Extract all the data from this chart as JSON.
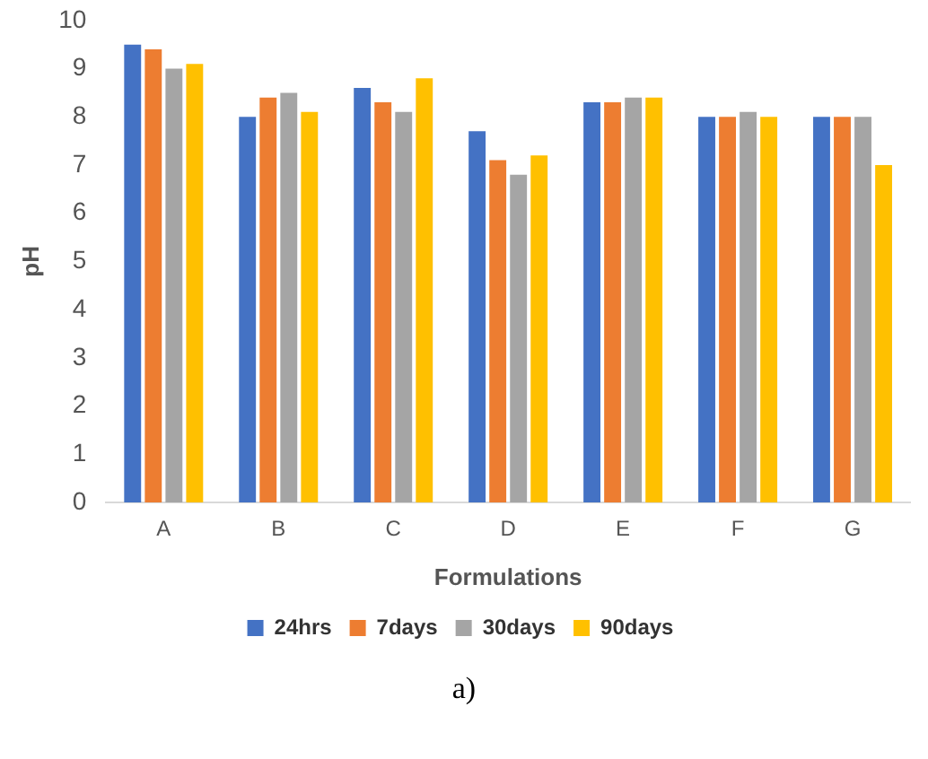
{
  "chart_data": {
    "type": "bar",
    "xlabel": "Formulations",
    "ylabel": "pH",
    "categories": [
      "A",
      "B",
      "C",
      "D",
      "E",
      "F",
      "G"
    ],
    "series": [
      {
        "name": "24hrs",
        "color": "#4472c4",
        "values": [
          9.5,
          8.0,
          8.6,
          7.7,
          8.3,
          8.0,
          8.0
        ]
      },
      {
        "name": "7days",
        "color": "#ed7d31",
        "values": [
          9.4,
          8.4,
          8.3,
          7.1,
          8.3,
          8.0,
          8.0
        ]
      },
      {
        "name": "30days",
        "color": "#a5a5a5",
        "values": [
          9.0,
          8.5,
          8.1,
          6.8,
          8.4,
          8.1,
          8.0
        ]
      },
      {
        "name": "90days",
        "color": "#ffc000",
        "values": [
          9.1,
          8.1,
          8.8,
          7.2,
          8.4,
          8.0,
          7.0
        ]
      }
    ],
    "ylim": [
      0,
      10
    ],
    "yticks": [
      0,
      1,
      2,
      3,
      4,
      5,
      6,
      7,
      8,
      9,
      10
    ],
    "grid": false,
    "legend": "bottom",
    "annotations": [
      "a)"
    ]
  }
}
